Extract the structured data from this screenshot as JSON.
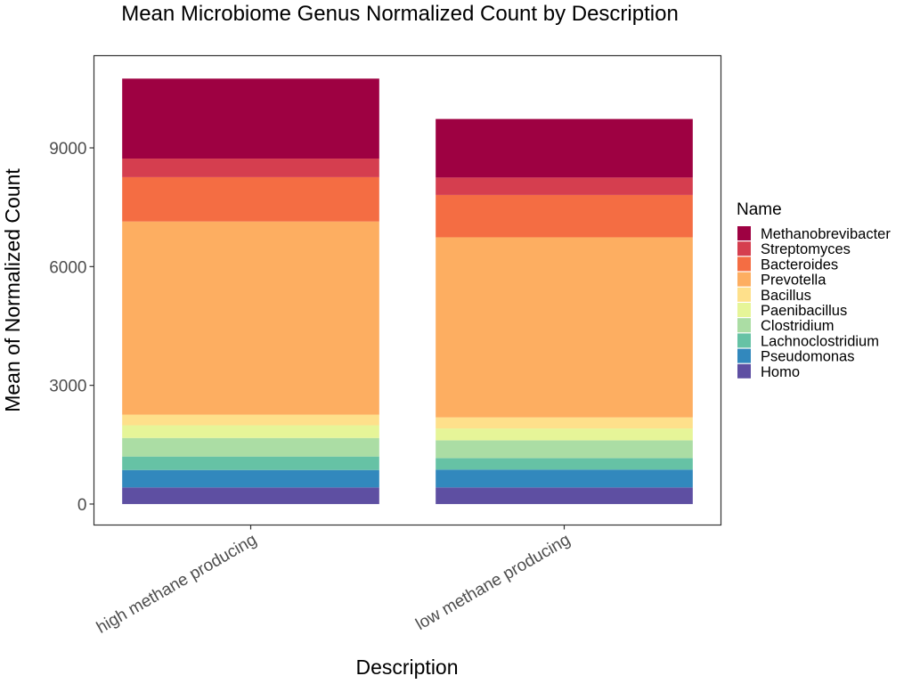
{
  "chart_data": {
    "type": "bar",
    "stacked": true,
    "title": "Mean Microbiome Genus Normalized Count by Description",
    "xlabel": "Description",
    "ylabel": "Mean of Normalized Count",
    "categories": [
      "high methane producing",
      "low methane producing"
    ],
    "ylim": [
      -530,
      11330
    ],
    "yticks": [
      0,
      3000,
      6000,
      9000
    ],
    "ytick_labels": [
      "0",
      "3000",
      "6000",
      "9000"
    ],
    "legend": {
      "title": "Name",
      "position": "right"
    },
    "series": [
      {
        "name": "Homo",
        "color": "#5E4FA2",
        "values": [
          420,
          420
        ]
      },
      {
        "name": "Pseudomonas",
        "color": "#3288BD",
        "values": [
          440,
          450
        ]
      },
      {
        "name": "Lachnoclostridium",
        "color": "#66C2A5",
        "values": [
          340,
          290
        ]
      },
      {
        "name": "Clostridium",
        "color": "#ABDDA4",
        "values": [
          470,
          450
        ]
      },
      {
        "name": "Paenibacillus",
        "color": "#E6F598",
        "values": [
          320,
          300
        ]
      },
      {
        "name": "Bacillus",
        "color": "#FEE08B",
        "values": [
          270,
          280
        ]
      },
      {
        "name": "Prevotella",
        "color": "#FDAE61",
        "values": [
          4880,
          4550
        ]
      },
      {
        "name": "Bacteroides",
        "color": "#F46D43",
        "values": [
          1120,
          1070
        ]
      },
      {
        "name": "Streptomyces",
        "color": "#D53E4F",
        "values": [
          470,
          440
        ]
      },
      {
        "name": "Methanobrevibacter",
        "color": "#9E0142",
        "values": [
          2020,
          1480
        ]
      }
    ]
  }
}
